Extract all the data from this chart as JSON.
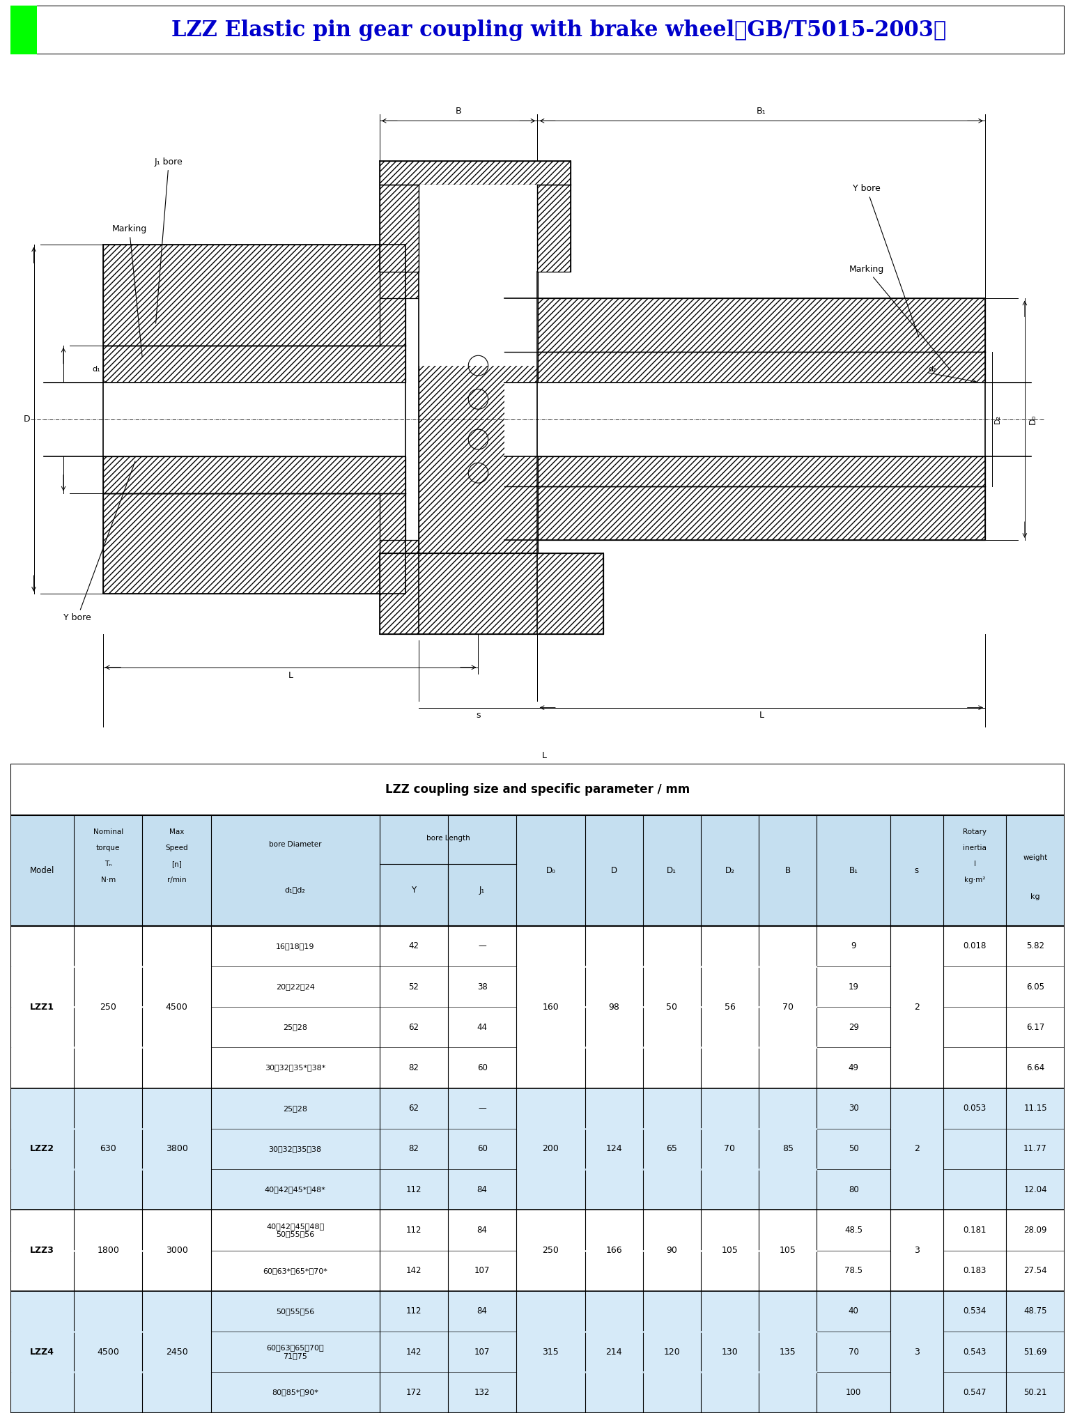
{
  "title": "LZZ Elastic pin gear coupling with brake wheel（GB/T5015-2003）",
  "title_color": "#0000CC",
  "green_bar_color": "#00FF00",
  "table_title": "LZZ coupling size and specific parameter / mm",
  "bg_color": "#FFFFFF",
  "rows": [
    [
      "LZZ1",
      "250",
      "4500",
      "16、18、19",
      "42",
      "—",
      "160",
      "98",
      "50",
      "56",
      "70",
      "9",
      "2",
      "0.018",
      "5.82"
    ],
    [
      "",
      "",
      "",
      "20、22、24",
      "52",
      "38",
      "",
      "",
      "",
      "",
      "",
      "19",
      "",
      "",
      "6.05"
    ],
    [
      "",
      "",
      "",
      "25、28",
      "62",
      "44",
      "",
      "",
      "",
      "",
      "",
      "29",
      "",
      "",
      "6.17"
    ],
    [
      "",
      "",
      "",
      "30、32、35*、38*",
      "82",
      "60",
      "",
      "",
      "",
      "",
      "",
      "49",
      "",
      "",
      "6.64"
    ],
    [
      "LZZ2",
      "630",
      "3800",
      "25、28",
      "62",
      "—",
      "200",
      "124",
      "65",
      "70",
      "85",
      "30",
      "2",
      "0.053",
      "11.15"
    ],
    [
      "",
      "",
      "",
      "30、32、35、38",
      "82",
      "60",
      "",
      "",
      "",
      "",
      "",
      "50",
      "",
      "",
      "11.77"
    ],
    [
      "",
      "",
      "",
      "40、42、45*、48*",
      "112",
      "84",
      "",
      "",
      "",
      "",
      "",
      "80",
      "",
      "",
      "12.04"
    ],
    [
      "LZZ3",
      "1800",
      "3000",
      "40、42、45、48、\n50、55、56",
      "112",
      "84",
      "250",
      "166",
      "90",
      "105",
      "105",
      "48.5",
      "3",
      "0.181",
      "28.09"
    ],
    [
      "",
      "",
      "",
      "60、63*、65*、70*",
      "142",
      "107",
      "",
      "",
      "",
      "",
      "",
      "78.5",
      "",
      "0.183",
      "27.54"
    ],
    [
      "LZZ4",
      "4500",
      "2450",
      "50、55、56",
      "112",
      "84",
      "315",
      "214",
      "120",
      "130",
      "135",
      "40",
      "3",
      "0.534",
      "48.75"
    ],
    [
      "",
      "",
      "",
      "60、63、65、70、\n71、75",
      "142",
      "107",
      "",
      "",
      "",
      "",
      "",
      "70",
      "",
      "0.543",
      "51.69"
    ],
    [
      "",
      "",
      "",
      "80、85*、90*",
      "172",
      "132",
      "",
      "",
      "",
      "",
      "",
      "100",
      "",
      "0.547",
      "50.21"
    ]
  ],
  "group_ranges": [
    [
      0,
      4
    ],
    [
      4,
      7
    ],
    [
      7,
      9
    ],
    [
      9,
      12
    ]
  ],
  "group_colors": [
    "#FFFFFF",
    "#D6EAF8",
    "#FFFFFF",
    "#D6EAF8"
  ]
}
